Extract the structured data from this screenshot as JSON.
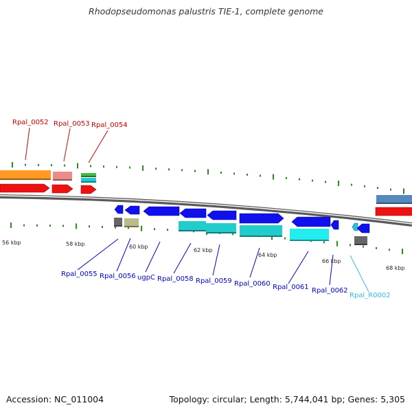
{
  "title": "Rhodopseudomonas palustris TIE-1, complete genome",
  "footer": {
    "accession": "Accession: NC_011004",
    "topology": "Topology: circular; Length: 5,744,041 bp; Genes: 5,305"
  },
  "scale": {
    "labels": [
      "56 kbp",
      "58 kbp",
      "60 kbp",
      "62 kbp",
      "64 kbp",
      "66 kbp",
      "68 kbp"
    ]
  },
  "colors": {
    "backbone": "#7a7a7a",
    "tick": "#2e8b20",
    "top_label": "#cc0000",
    "bottom_label": "#0000cc",
    "rna_label": "#33bbe6",
    "cds_blue": "#1010ee",
    "cds_red": "#ee1111",
    "cds_orange": "#ff9922",
    "cds_pink": "#ee8a8a",
    "cds_green": "#44bb44",
    "cds_cyan": "#22cccc",
    "cds_cyan_light": "#22eeee",
    "cds_steel": "#5588bb",
    "cds_olive": "#bbbb88",
    "cds_gray": "#666666"
  },
  "genes": {
    "top": [
      "Rpal_0052",
      "Rpal_0053",
      "Rpal_0054"
    ],
    "bottom": [
      "Rpal_0055",
      "Rpal_0056",
      "ugpC",
      "Rpal_0058",
      "Rpal_0059",
      "Rpal_0060",
      "Rpal_0061",
      "Rpal_0062",
      "Rpal_R0002"
    ]
  }
}
